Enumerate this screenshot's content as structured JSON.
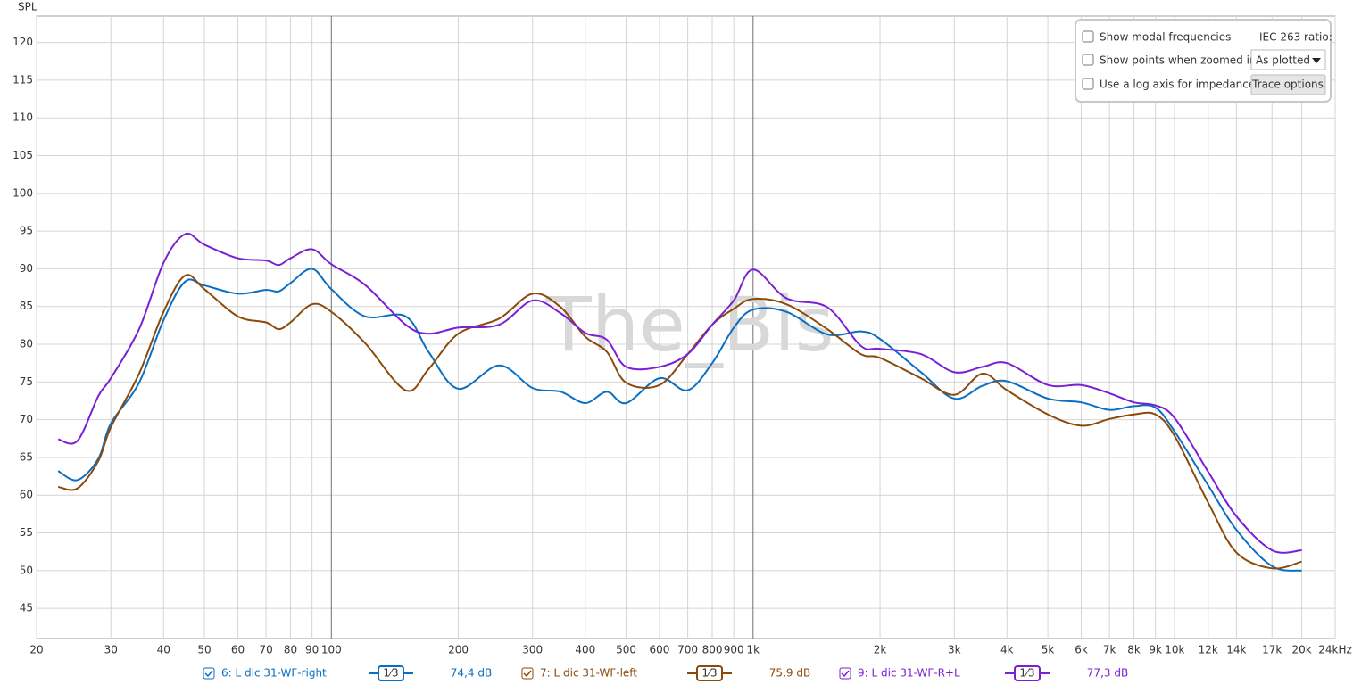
{
  "chart_data": {
    "type": "line",
    "y_label": "SPL",
    "watermark": "The_Bis",
    "xscale": "log",
    "grid": true,
    "xlim": [
      20,
      24000
    ],
    "ylim": [
      41,
      123.5
    ],
    "yticks": [
      45,
      50,
      55,
      60,
      65,
      70,
      75,
      80,
      85,
      90,
      95,
      100,
      105,
      110,
      115,
      120
    ],
    "xticks": [
      20,
      30,
      40,
      50,
      60,
      70,
      80,
      90,
      100,
      200,
      300,
      400,
      500,
      600,
      700,
      800,
      900,
      {
        "value": 1000,
        "label": "1k"
      },
      {
        "value": 2000,
        "label": "2k"
      },
      {
        "value": 3000,
        "label": "3k"
      },
      {
        "value": 4000,
        "label": "4k"
      },
      {
        "value": 5000,
        "label": "5k"
      },
      {
        "value": 6000,
        "label": "6k"
      },
      {
        "value": 7000,
        "label": "7k"
      },
      {
        "value": 8000,
        "label": "8k"
      },
      {
        "value": 9000,
        "label": "9k"
      },
      {
        "value": 10000,
        "label": "10k"
      },
      {
        "value": 12000,
        "label": "12k"
      },
      {
        "value": 14000,
        "label": "14k"
      },
      {
        "value": 17000,
        "label": "17k"
      },
      {
        "value": 20000,
        "label": "20k"
      },
      {
        "value": 24000,
        "label": "24kHz"
      }
    ],
    "x": [
      22.5,
      25,
      28,
      30,
      35,
      40,
      45,
      50,
      60,
      70,
      75,
      80,
      90,
      100,
      120,
      150,
      170,
      200,
      250,
      300,
      350,
      400,
      450,
      500,
      600,
      700,
      800,
      900,
      1000,
      1200,
      1500,
      1800,
      2000,
      2500,
      3000,
      3500,
      4000,
      5000,
      6000,
      7000,
      8000,
      9000,
      10000,
      12000,
      14000,
      17000,
      20000
    ],
    "series": [
      {
        "name": "6: L dic 31-WF-right",
        "smoothing": "1⁄3",
        "level": "74,4 dB",
        "color": "#0a6fc2",
        "values": [
          63.2,
          62.0,
          64.8,
          69.5,
          74.9,
          83.2,
          88.3,
          87.8,
          86.7,
          87.2,
          87.0,
          88.1,
          90.0,
          87.3,
          83.7,
          83.7,
          79.0,
          74.1,
          77.2,
          74.2,
          73.7,
          72.2,
          73.7,
          72.2,
          75.5,
          73.9,
          77.5,
          82.2,
          84.6,
          84.3,
          81.3,
          81.7,
          80.7,
          76.3,
          72.8,
          74.5,
          75.1,
          72.8,
          72.3,
          71.3,
          71.8,
          71.6,
          68.4,
          61.3,
          55.4,
          50.6,
          50.0
        ]
      },
      {
        "name": "7: L dic 31-WF-left",
        "smoothing": "1⁄3",
        "level": "75,9 dB",
        "color": "#8b4a0c",
        "values": [
          61.1,
          60.9,
          64.5,
          69.0,
          76.1,
          84.3,
          89.1,
          87.3,
          83.7,
          82.9,
          82.0,
          82.9,
          85.3,
          84.3,
          80.2,
          73.9,
          76.7,
          81.4,
          83.4,
          86.7,
          84.9,
          81.0,
          79.0,
          74.9,
          74.6,
          78.7,
          82.6,
          84.7,
          86.0,
          85.3,
          82.0,
          78.7,
          78.2,
          75.5,
          73.3,
          76.1,
          73.9,
          70.7,
          69.2,
          70.1,
          70.7,
          70.7,
          67.8,
          59.0,
          52.4,
          50.3,
          51.2
        ]
      },
      {
        "name": "9: L dic 31-WF-R+L",
        "smoothing": "1⁄3",
        "level": "77,3 dB",
        "color": "#7a1fd6",
        "values": [
          67.4,
          67.2,
          73.1,
          75.5,
          82.0,
          90.8,
          94.6,
          93.2,
          91.4,
          91.1,
          90.5,
          91.4,
          92.6,
          90.6,
          87.9,
          82.6,
          81.4,
          82.2,
          82.6,
          85.8,
          84.1,
          81.5,
          80.6,
          77.0,
          77.0,
          78.7,
          82.6,
          85.8,
          89.9,
          86.1,
          84.9,
          79.8,
          79.4,
          78.7,
          76.3,
          77.0,
          77.5,
          74.6,
          74.6,
          73.5,
          72.3,
          71.9,
          70.2,
          63.1,
          57.2,
          52.7,
          52.7
        ]
      }
    ]
  },
  "controls": {
    "show_modal": "Show modal frequencies",
    "show_points": "Show points when zoomed in",
    "log_impedance": "Use a log axis for impedance",
    "iec_label": "IEC 263 ratio:",
    "iec_select": "As plotted",
    "trace_button": "Trace options"
  }
}
